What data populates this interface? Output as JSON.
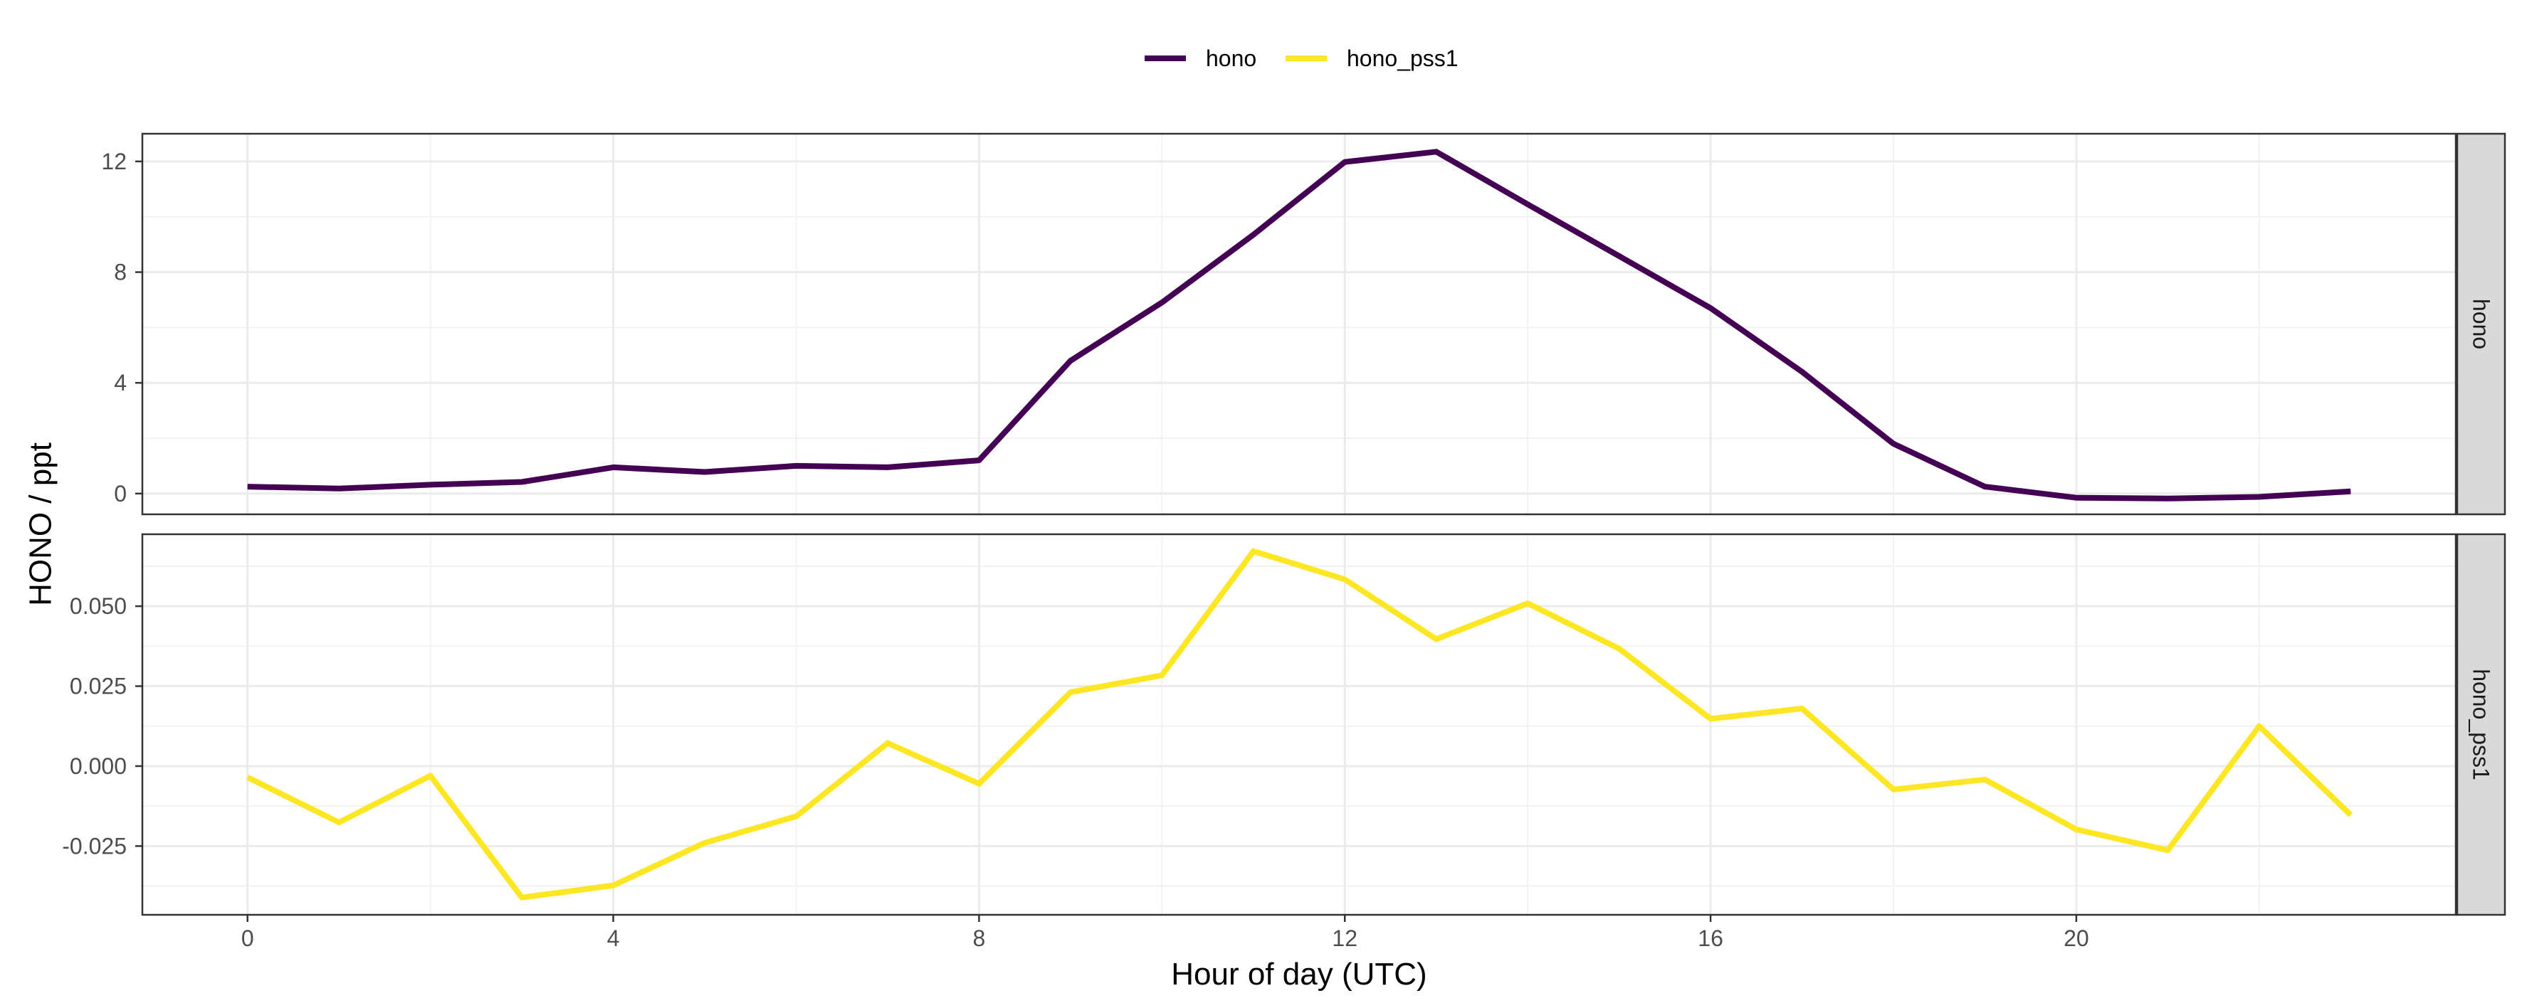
{
  "chart_data": {
    "type": "line",
    "xlabel": "Hour of day (UTC)",
    "ylabel": "HONO / ppt",
    "legend_position": "top",
    "grid": true,
    "x": [
      0,
      1,
      2,
      3,
      4,
      5,
      6,
      7,
      8,
      9,
      10,
      11,
      12,
      13,
      14,
      15,
      16,
      17,
      18,
      19,
      20,
      21,
      22,
      23
    ],
    "xlim": [
      -1.15,
      24.15
    ],
    "x_ticks": [
      0,
      4,
      8,
      12,
      16,
      20
    ],
    "x_tick_labels": [
      "0",
      "4",
      "8",
      "12",
      "16",
      "20"
    ],
    "series": [
      {
        "name": "hono",
        "color": "#440154",
        "values": [
          0.25,
          0.18,
          0.32,
          0.42,
          0.95,
          0.78,
          1.0,
          0.95,
          1.2,
          4.8,
          6.9,
          9.35,
          11.98,
          12.35,
          10.45,
          8.58,
          6.7,
          4.4,
          1.8,
          0.25,
          -0.15,
          -0.18,
          -0.12,
          0.08
        ]
      },
      {
        "name": "hono_pss1",
        "color": "#FDE725",
        "values": [
          -0.0035,
          -0.0176,
          -0.003,
          -0.0411,
          -0.0373,
          -0.024,
          -0.0157,
          0.0072,
          -0.0055,
          0.0231,
          0.0284,
          0.0672,
          0.0584,
          0.0397,
          0.0509,
          0.0367,
          0.0148,
          0.018,
          -0.0073,
          -0.0042,
          -0.0198,
          -0.0263,
          0.0125,
          -0.0153
        ]
      }
    ],
    "facets": [
      {
        "label": "hono",
        "series": "hono",
        "ylim": [
          -0.75,
          13.0
        ],
        "y_ticks": [
          0,
          4,
          8,
          12
        ],
        "y_tick_labels": [
          "0",
          "4",
          "8",
          "12"
        ]
      },
      {
        "label": "hono_pss1",
        "series": "hono_pss1",
        "ylim": [
          -0.0465,
          0.0725
        ],
        "y_ticks": [
          -0.025,
          0,
          0.025,
          0.05
        ],
        "y_tick_labels": [
          "-0.025",
          "0.000",
          "0.025",
          "0.050"
        ]
      }
    ]
  }
}
